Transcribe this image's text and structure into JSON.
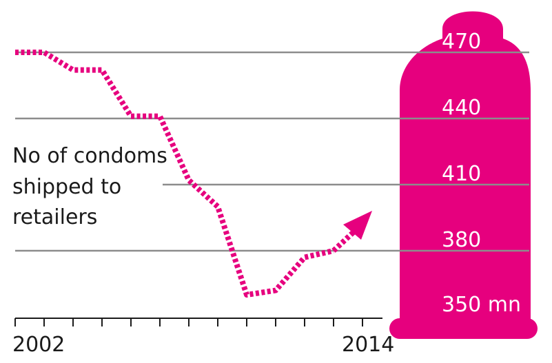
{
  "chart_data": {
    "type": "line",
    "annotation": [
      "No of condoms",
      "shipped to",
      "retailers"
    ],
    "x_tick_labels": [
      {
        "year": 2002,
        "label": "2002"
      },
      {
        "year": 2014,
        "label": "2014"
      }
    ],
    "y_ticks": [
      {
        "value": 470,
        "label": "470"
      },
      {
        "value": 440,
        "label": "440"
      },
      {
        "value": 410,
        "label": "410"
      },
      {
        "value": 380,
        "label": "380"
      },
      {
        "value": 350,
        "label": "350 mn"
      }
    ],
    "xlim": [
      2002,
      2014
    ],
    "ylim": [
      350,
      470
    ],
    "series": [
      {
        "style": "dotted",
        "color": "#e6007e",
        "x": [
          2002,
          2003,
          2004,
          2005,
          2006,
          2007,
          2008,
          2009,
          2010,
          2011,
          2012,
          2013
        ],
        "y": [
          470,
          470,
          462,
          462,
          441,
          441,
          412,
          400,
          360,
          362,
          377,
          380
        ]
      }
    ],
    "trend_arrow": {
      "from_year": 2013,
      "direction": "up"
    },
    "accent_color": "#e6007e",
    "grid_color": "#8c8c8c"
  }
}
